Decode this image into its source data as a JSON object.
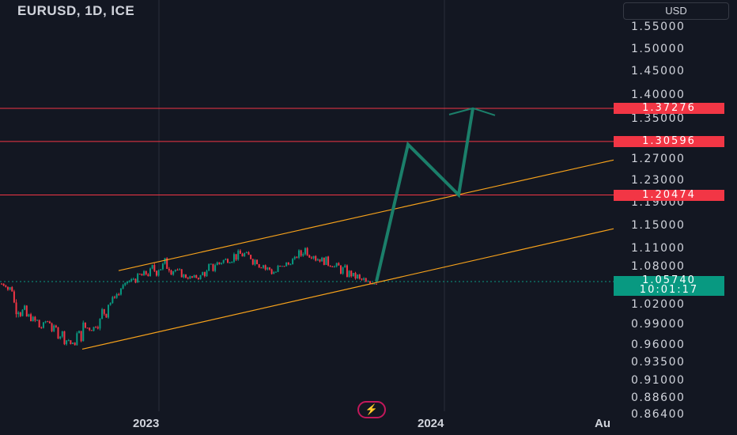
{
  "header": {
    "title": "EURUSD, 1D, ICE",
    "currency_button": "USD"
  },
  "chart_data": {
    "type": "candlestick",
    "symbol": "EURUSD",
    "interval": "1D",
    "exchange": "ICE",
    "y_axis": {
      "scale": "log",
      "ticks": [
        "1.55000",
        "1.50000",
        "1.45000",
        "1.40000",
        "1.35000",
        "1.27000",
        "1.23000",
        "1.19000",
        "1.15000",
        "1.11000",
        "1.08000",
        "1.02000",
        "0.99000",
        "0.96000",
        "0.93500",
        "0.91000",
        "0.88600",
        "0.86400"
      ]
    },
    "x_axis": {
      "ticks": [
        "2023",
        "2024",
        "Au"
      ]
    },
    "price_levels": [
      {
        "label": "1.37276",
        "value": 1.37276,
        "color": "#f23645"
      },
      {
        "label": "1.30596",
        "value": 1.30596,
        "color": "#f23645"
      },
      {
        "label": "1.20474",
        "value": 1.20474,
        "color": "#f23645"
      }
    ],
    "last_price": {
      "label": "1.05740",
      "value": 1.0574,
      "countdown": "10:01:17",
      "color": "#089981"
    },
    "ohlc_path": [
      [
        1.06,
        1.048
      ],
      [
        1.054,
        1.038
      ],
      [
        1.04,
        1.005
      ],
      [
        1.02,
        1.0
      ],
      [
        1.01,
        0.995
      ],
      [
        1.005,
        0.985
      ],
      [
        0.995,
        0.98
      ],
      [
        1.002,
        0.99
      ],
      [
        0.99,
        0.978
      ],
      [
        0.985,
        0.97
      ],
      [
        0.975,
        0.962
      ],
      [
        0.965,
        0.96
      ],
      [
        0.985,
        0.965
      ],
      [
        0.998,
        0.975
      ],
      [
        0.992,
        0.98
      ],
      [
        1.005,
        0.985
      ],
      [
        1.02,
        1.0
      ],
      [
        1.035,
        1.015
      ],
      [
        1.045,
        1.03
      ],
      [
        1.055,
        1.04
      ],
      [
        1.065,
        1.05
      ],
      [
        1.07,
        1.055
      ],
      [
        1.075,
        1.058
      ],
      [
        1.08,
        1.062
      ],
      [
        1.088,
        1.065
      ],
      [
        1.092,
        1.07
      ],
      [
        1.098,
        1.072
      ],
      [
        1.085,
        1.068
      ],
      [
        1.078,
        1.063
      ],
      [
        1.072,
        1.06
      ],
      [
        1.068,
        1.058
      ],
      [
        1.07,
        1.06
      ],
      [
        1.078,
        1.064
      ],
      [
        1.088,
        1.07
      ],
      [
        1.095,
        1.078
      ],
      [
        1.1,
        1.082
      ],
      [
        1.104,
        1.088
      ],
      [
        1.108,
        1.09
      ],
      [
        1.11,
        1.093
      ],
      [
        1.106,
        1.09
      ],
      [
        1.1,
        1.084
      ],
      [
        1.092,
        1.078
      ],
      [
        1.085,
        1.07
      ],
      [
        1.08,
        1.066
      ],
      [
        1.086,
        1.072
      ],
      [
        1.092,
        1.078
      ],
      [
        1.098,
        1.085
      ],
      [
        1.11,
        1.092
      ],
      [
        1.122,
        1.098
      ],
      [
        1.11,
        1.095
      ],
      [
        1.102,
        1.088
      ],
      [
        1.098,
        1.084
      ],
      [
        1.094,
        1.08
      ],
      [
        1.088,
        1.074
      ],
      [
        1.084,
        1.068
      ],
      [
        1.078,
        1.062
      ],
      [
        1.072,
        1.058
      ],
      [
        1.066,
        1.053
      ],
      [
        1.06,
        1.05
      ],
      [
        1.06,
        1.052
      ]
    ],
    "channel": {
      "upper": [
        [
          "start",
          1.075
        ],
        [
          "end",
          1.27
        ]
      ],
      "lower": [
        [
          "start",
          0.955
        ],
        [
          "end",
          1.145
        ]
      ],
      "color": "#f7a21b"
    },
    "projection": {
      "points": [
        1.0574,
        1.3,
        1.205,
        1.373
      ],
      "color": "#1b7f6a"
    }
  }
}
